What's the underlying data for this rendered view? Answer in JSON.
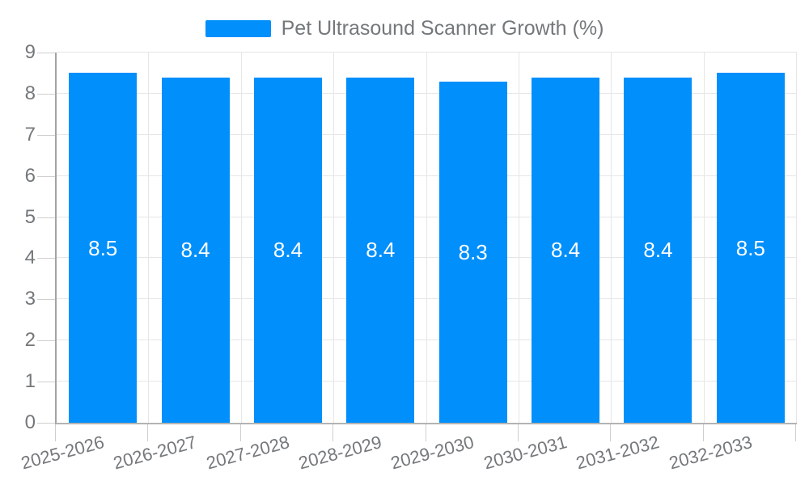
{
  "legend": {
    "label": "Pet Ultrasound Scanner Growth (%)"
  },
  "colors": {
    "bar": "#008FFB",
    "bar_label": "#ffffff",
    "axis_text": "#74787b",
    "gridline": "#e6e6e6",
    "tick": "#cfcfcf",
    "axis_line_left": "#a3a3a3",
    "axis_line_bottom": "#b3b3b3"
  },
  "chart_data": {
    "type": "bar",
    "title": "Pet Ultrasound Scanner Growth (%)",
    "categories": [
      "2025-2026",
      "2026-2027",
      "2027-2028",
      "2028-2029",
      "2029-2030",
      "2030-2031",
      "2031-2032",
      "2032-2033"
    ],
    "values": [
      8.5,
      8.4,
      8.4,
      8.4,
      8.3,
      8.4,
      8.4,
      8.5
    ],
    "data_labels": [
      "8.5",
      "8.4",
      "8.4",
      "8.4",
      "8.3",
      "8.4",
      "8.4",
      "8.5"
    ],
    "ytick_labels": [
      "0",
      "1",
      "2",
      "3",
      "4",
      "5",
      "6",
      "7",
      "8",
      "9"
    ],
    "xlabel": "",
    "ylabel": "",
    "ylim": [
      0,
      9
    ],
    "grid": true,
    "legend_position": "top",
    "x_label_rotation_deg": -15,
    "bar_color": "#008FFB",
    "label_color": "#ffffff"
  }
}
